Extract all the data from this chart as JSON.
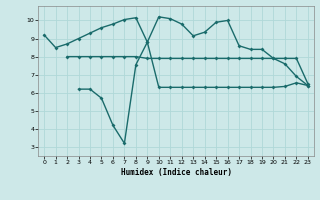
{
  "xlabel": "Humidex (Indice chaleur)",
  "xlim": [
    -0.5,
    23.5
  ],
  "ylim": [
    2.5,
    10.8
  ],
  "yticks": [
    3,
    4,
    5,
    6,
    7,
    8,
    9,
    10
  ],
  "xticks": [
    0,
    1,
    2,
    3,
    4,
    5,
    6,
    7,
    8,
    9,
    10,
    11,
    12,
    13,
    14,
    15,
    16,
    17,
    18,
    19,
    20,
    21,
    22,
    23
  ],
  "bg_color": "#cde8e8",
  "line_color": "#1a6b6b",
  "grid_color": "#b0d8d8",
  "line1_x": [
    0,
    1,
    2,
    3,
    4,
    5,
    6,
    7,
    8,
    9,
    10,
    11,
    12,
    13,
    14,
    15,
    16,
    17,
    18,
    19,
    20,
    21,
    22,
    23
  ],
  "line1_y": [
    9.2,
    8.5,
    8.7,
    9.0,
    9.3,
    9.6,
    9.8,
    10.05,
    10.15,
    8.8,
    10.2,
    10.1,
    9.8,
    9.15,
    9.35,
    9.9,
    10.0,
    8.6,
    8.4,
    8.4,
    7.9,
    7.6,
    6.9,
    6.4
  ],
  "line2_x": [
    2,
    3,
    4,
    5,
    6,
    7,
    8,
    9,
    10,
    11,
    12,
    13,
    14,
    15,
    16,
    17,
    18,
    19,
    20,
    21,
    22,
    23
  ],
  "line2_y": [
    8.0,
    8.0,
    8.0,
    8.0,
    8.0,
    8.0,
    8.0,
    7.9,
    7.9,
    7.9,
    7.9,
    7.9,
    7.9,
    7.9,
    7.9,
    7.9,
    7.9,
    7.9,
    7.9,
    7.9,
    7.9,
    6.5
  ],
  "line3_x": [
    3,
    4,
    5,
    6,
    7,
    8,
    9,
    10,
    11,
    12,
    13,
    14,
    15,
    16,
    17,
    18,
    19,
    20,
    21,
    22,
    23
  ],
  "line3_y": [
    6.2,
    6.2,
    5.7,
    4.2,
    3.2,
    7.55,
    8.8,
    6.3,
    6.3,
    6.3,
    6.3,
    6.3,
    6.3,
    6.3,
    6.3,
    6.3,
    6.3,
    6.3,
    6.35,
    6.55,
    6.4
  ],
  "markersize": 2.0,
  "linewidth": 1.0
}
